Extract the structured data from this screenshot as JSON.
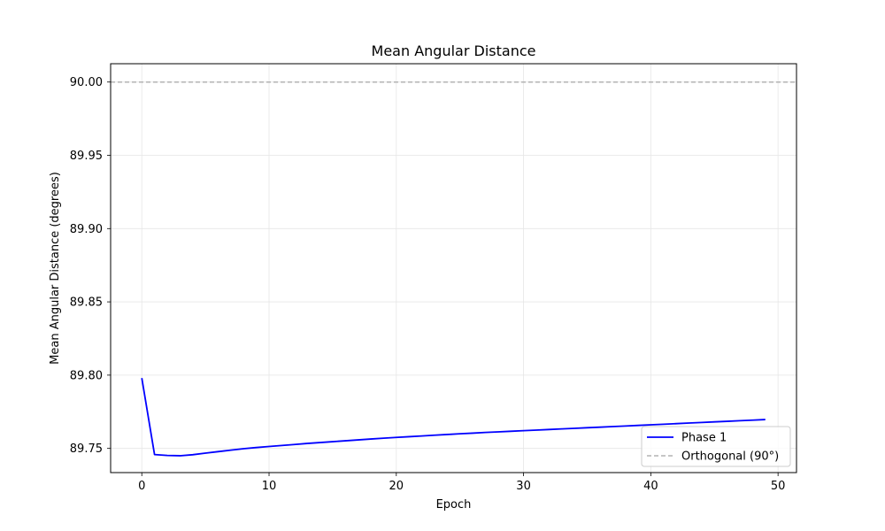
{
  "chart_data": {
    "type": "line",
    "title": "Mean Angular Distance",
    "xlabel": "Epoch",
    "ylabel": "Mean Angular Distance (degrees)",
    "xlim": [
      -2.45,
      51.45
    ],
    "ylim": [
      89.7335,
      90.0125
    ],
    "xticks": [
      0,
      10,
      20,
      30,
      40,
      50
    ],
    "yticks": [
      89.75,
      89.8,
      89.85,
      89.9,
      89.95,
      90.0
    ],
    "ytick_labels": [
      "89.75",
      "89.80",
      "89.85",
      "89.90",
      "89.95",
      "90.00"
    ],
    "grid": true,
    "legend_position": "lower right",
    "series": [
      {
        "name": "Phase 1",
        "color": "#0000ff",
        "style": "solid",
        "x": [
          0,
          1,
          2,
          3,
          4,
          5,
          6,
          7,
          8,
          9,
          10,
          11,
          12,
          13,
          14,
          15,
          16,
          17,
          18,
          19,
          20,
          21,
          22,
          23,
          24,
          25,
          26,
          27,
          28,
          29,
          30,
          31,
          32,
          33,
          34,
          35,
          36,
          37,
          38,
          39,
          40,
          41,
          42,
          43,
          44,
          45,
          46,
          47,
          48,
          49
        ],
        "values": [
          89.798,
          89.7458,
          89.7452,
          89.745,
          89.7457,
          89.7468,
          89.7478,
          89.7488,
          89.7498,
          89.7506,
          89.7513,
          89.752,
          89.7527,
          89.7534,
          89.754,
          89.7546,
          89.7552,
          89.7558,
          89.7564,
          89.757,
          89.7575,
          89.758,
          89.7585,
          89.759,
          89.7595,
          89.76,
          89.7604,
          89.7609,
          89.7613,
          89.7617,
          89.7621,
          89.7625,
          89.7629,
          89.7633,
          89.7637,
          89.7641,
          89.7645,
          89.7649,
          89.7653,
          89.7657,
          89.7661,
          89.7665,
          89.7669,
          89.7673,
          89.7677,
          89.7681,
          89.7685,
          89.7689,
          89.7693,
          89.7697
        ]
      },
      {
        "name": "Orthogonal (90°)",
        "color": "#b3b3b3",
        "style": "dashed",
        "hline": 90.0
      }
    ]
  }
}
